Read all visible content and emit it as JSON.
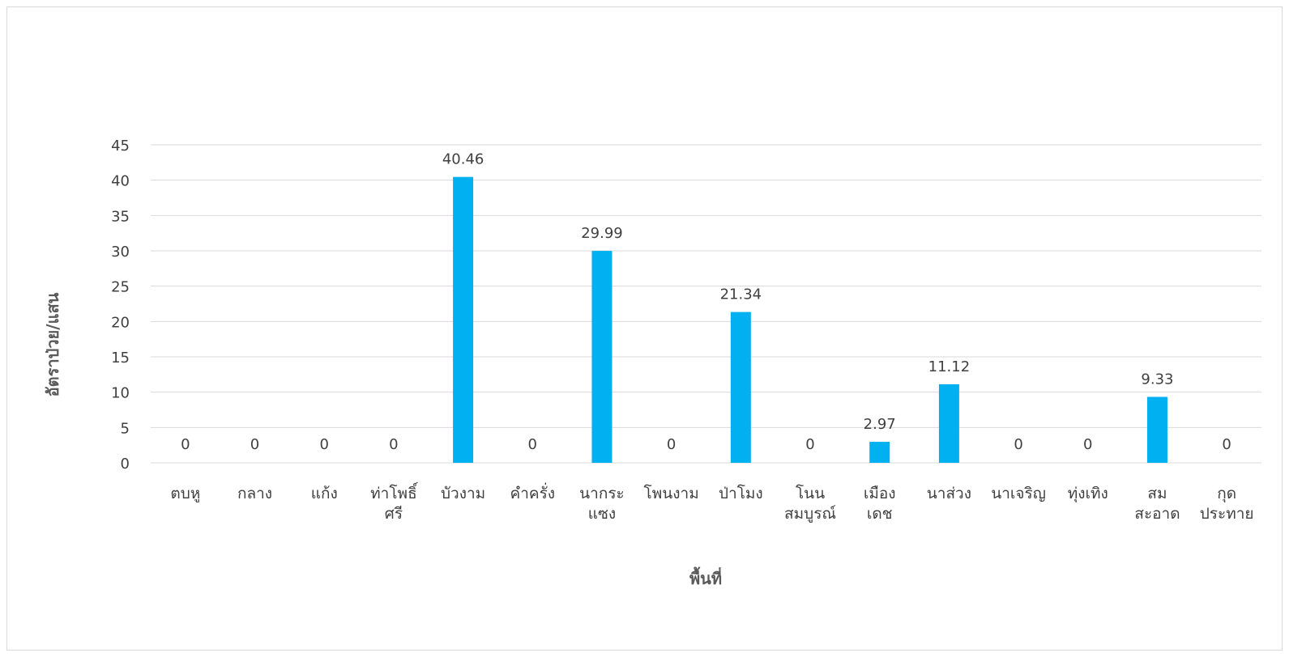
{
  "chart_data": {
    "type": "bar",
    "title": "",
    "xlabel": "พื้นที่",
    "ylabel": "อัตราป่วย/แสน",
    "categories": [
      [
        "ตบหู"
      ],
      [
        "กลาง"
      ],
      [
        "แก้ง"
      ],
      [
        "ท่าโพธิ์",
        "ศรี"
      ],
      [
        "บัวงาม"
      ],
      [
        "คำครั่ง"
      ],
      [
        "นากระ",
        "แซง"
      ],
      [
        "โพนงาม"
      ],
      [
        "ป่าโมง"
      ],
      [
        "โนน",
        "สมบูรณ์"
      ],
      [
        "เมือง",
        "เดช"
      ],
      [
        "นาส่วง"
      ],
      [
        "นาเจริญ"
      ],
      [
        "ทุ่งเทิง"
      ],
      [
        "สม",
        "สะอาด"
      ],
      [
        "กุด",
        "ประทาย"
      ]
    ],
    "values": [
      0,
      0,
      0,
      0,
      40.46,
      0,
      29.99,
      0,
      21.34,
      0,
      2.97,
      11.12,
      0,
      0,
      9.33,
      0
    ],
    "data_labels": [
      "0",
      "0",
      "0",
      "0",
      "40.46",
      "0",
      "29.99",
      "0",
      "21.34",
      "0",
      "2.97",
      "11.12",
      "0",
      "0",
      "9.33",
      "0"
    ],
    "yticks": [
      "0",
      "5",
      "10",
      "15",
      "20",
      "25",
      "30",
      "35",
      "40",
      "45"
    ],
    "ylim": [
      0,
      45
    ],
    "grid": true,
    "legend": "none",
    "colors": {
      "bar": "#00b0f0",
      "grid": "#d9d9d9",
      "text": "#404040"
    }
  }
}
